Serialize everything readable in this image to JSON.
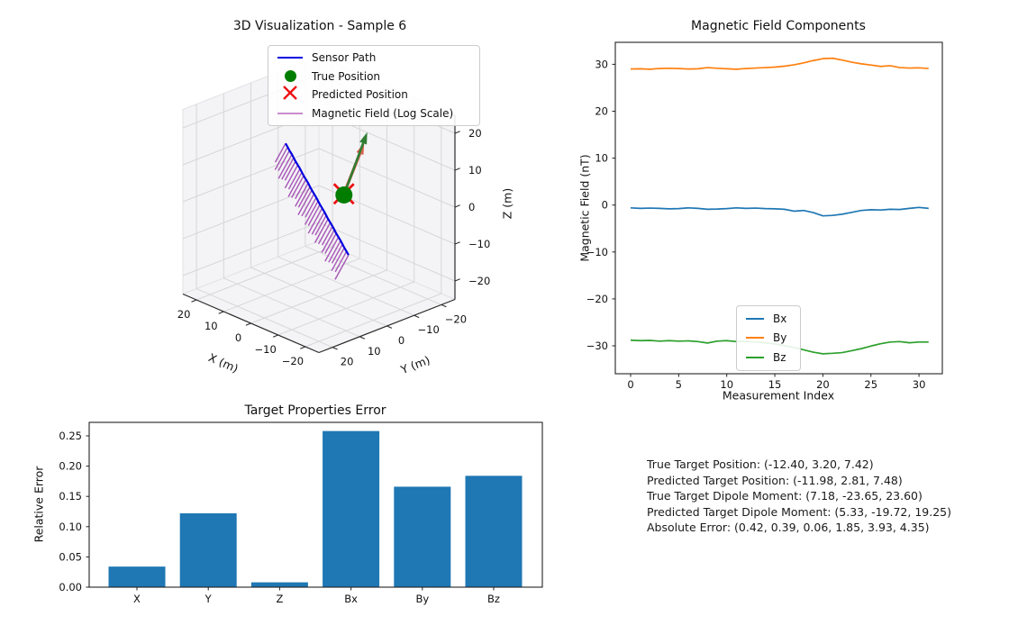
{
  "figure": {
    "bg": "#ffffff"
  },
  "chart_data": [
    {
      "type": "line3d",
      "title": "3D Visualization - Sample 6",
      "xlabel": "X (m)",
      "ylabel": "Y (m)",
      "zlabel": "Z (m)",
      "axis_ticks": [
        20,
        10,
        0,
        -10,
        -20
      ],
      "axis_range": [
        -25,
        25
      ],
      "legend": [
        {
          "swatch": "line",
          "color": "#0000e0",
          "label": "Sensor Path"
        },
        {
          "swatch": "dot",
          "color": "#007d00",
          "label": "True Position"
        },
        {
          "swatch": "x",
          "color": "#ee1111",
          "label": "Predicted Position"
        },
        {
          "swatch": "line",
          "color": "#c98ccb",
          "label": "Magnetic Field (Log Scale)"
        }
      ],
      "sensor_path": [
        [
          10.0,
          2.25,
          14.0
        ],
        [
          9.42,
          2.08,
          13.16
        ],
        [
          8.9,
          1.92,
          12.32
        ],
        [
          8.18,
          1.75,
          11.48
        ],
        [
          7.68,
          1.59,
          10.65
        ],
        [
          7.18,
          1.42,
          9.81
        ],
        [
          6.52,
          1.25,
          8.97
        ],
        [
          5.86,
          1.09,
          8.13
        ],
        [
          5.35,
          0.92,
          7.29
        ],
        [
          4.85,
          0.75,
          6.45
        ],
        [
          4.19,
          0.59,
          5.61
        ],
        [
          3.53,
          0.42,
          4.77
        ],
        [
          3.03,
          0.26,
          3.94
        ],
        [
          2.52,
          0.09,
          3.1
        ],
        [
          1.87,
          -0.08,
          2.26
        ],
        [
          1.22,
          -0.24,
          1.42
        ],
        [
          0.71,
          -0.41,
          0.58
        ],
        [
          0.2,
          -0.58,
          -0.26
        ],
        [
          -0.45,
          -0.74,
          -1.1
        ],
        [
          -1.1,
          -0.91,
          -1.94
        ],
        [
          -1.61,
          -1.07,
          -2.77
        ],
        [
          -2.12,
          -1.24,
          -3.61
        ],
        [
          -2.77,
          -1.41,
          -4.45
        ],
        [
          -3.42,
          -1.57,
          -5.29
        ],
        [
          -3.94,
          -1.74,
          -6.13
        ],
        [
          -4.45,
          -1.9,
          -6.97
        ],
        [
          -5.1,
          -2.07,
          -7.81
        ],
        [
          -5.75,
          -2.24,
          -8.65
        ],
        [
          -6.26,
          -2.4,
          -9.48
        ],
        [
          -6.77,
          -2.57,
          -10.32
        ],
        [
          -7.42,
          -2.73,
          -11.16
        ],
        [
          -8.0,
          -2.9,
          -12.0
        ]
      ],
      "true_position": [
        -12.4,
        3.2,
        7.42
      ],
      "predicted_position": [
        -11.98,
        2.81,
        7.48
      ],
      "true_dipole": [
        7.18,
        -23.65,
        23.6
      ],
      "predicted_dipole": [
        5.33,
        -19.72,
        19.25
      ],
      "dipole_draw_scale": 0.52,
      "field_vector_screen_offset": [
        -13.5,
        24.5
      ],
      "colors": {
        "path": "#0000e0",
        "true": "#007d00",
        "pred": "#ee1111",
        "field": "#a24db3",
        "true_arrow": "#2e7d32",
        "pred_arrow": "#d9604f"
      }
    },
    {
      "type": "line",
      "title": "Magnetic Field Components",
      "xlabel": "Measurement Index",
      "ylabel": "Magnetic Field (nT)",
      "xticks": [
        0,
        5,
        10,
        15,
        20,
        25,
        30
      ],
      "yticks": [
        30,
        20,
        10,
        0,
        -10,
        -20,
        -30
      ],
      "xlim": [
        -1.55,
        32.55
      ],
      "ylim": [
        -36,
        34.7
      ],
      "legend_position": "lower center",
      "series": [
        {
          "name": "Bx",
          "color": "#1f77b4",
          "values": [
            -0.6,
            -0.7,
            -0.65,
            -0.7,
            -0.8,
            -0.75,
            -0.6,
            -0.7,
            -0.9,
            -0.85,
            -0.75,
            -0.6,
            -0.7,
            -0.65,
            -0.75,
            -0.8,
            -0.9,
            -1.3,
            -1.15,
            -1.6,
            -2.3,
            -2.2,
            -1.95,
            -1.55,
            -1.15,
            -1.0,
            -1.05,
            -0.9,
            -0.95,
            -0.7,
            -0.5,
            -0.7
          ]
        },
        {
          "name": "By",
          "color": "#ff7f0e",
          "values": [
            29.0,
            29.05,
            28.95,
            29.1,
            29.15,
            29.1,
            29.0,
            29.05,
            29.3,
            29.15,
            29.05,
            28.95,
            29.1,
            29.2,
            29.3,
            29.4,
            29.6,
            29.9,
            30.3,
            30.8,
            31.2,
            31.3,
            30.9,
            30.45,
            30.1,
            29.85,
            29.55,
            29.7,
            29.3,
            29.2,
            29.25,
            29.1
          ]
        },
        {
          "name": "Bz",
          "color": "#2ca02c",
          "values": [
            -28.8,
            -28.9,
            -28.85,
            -29.0,
            -28.9,
            -29.0,
            -28.95,
            -29.1,
            -29.4,
            -29.0,
            -28.9,
            -29.1,
            -29.05,
            -29.15,
            -29.35,
            -29.6,
            -29.95,
            -30.35,
            -30.85,
            -31.35,
            -31.7,
            -31.6,
            -31.45,
            -31.05,
            -30.6,
            -30.05,
            -29.55,
            -29.2,
            -29.1,
            -29.35,
            -29.2,
            -29.2
          ]
        }
      ]
    },
    {
      "type": "bar",
      "title": "Target Properties Error",
      "ylabel": "Relative Error",
      "categories": [
        "X",
        "Y",
        "Z",
        "Bx",
        "By",
        "Bz"
      ],
      "values": [
        0.034,
        0.122,
        0.008,
        0.258,
        0.166,
        0.184
      ],
      "yticks": [
        0.0,
        0.05,
        0.1,
        0.15,
        0.2,
        0.25
      ],
      "ylim": [
        0,
        0.272
      ],
      "bar_color": "#1f77b4"
    }
  ],
  "info_text": {
    "lines": [
      "True Target Position: (-12.40, 3.20, 7.42)",
      "Predicted Target Position: (-11.98, 2.81, 7.48)",
      "True Target Dipole Moment: (7.18, -23.65, 23.60)",
      "Predicted Target Dipole Moment: (5.33, -19.72, 19.25)",
      "Absolute Error: (0.42, 0.39, 0.06, 1.85, 3.93, 4.35)"
    ]
  }
}
